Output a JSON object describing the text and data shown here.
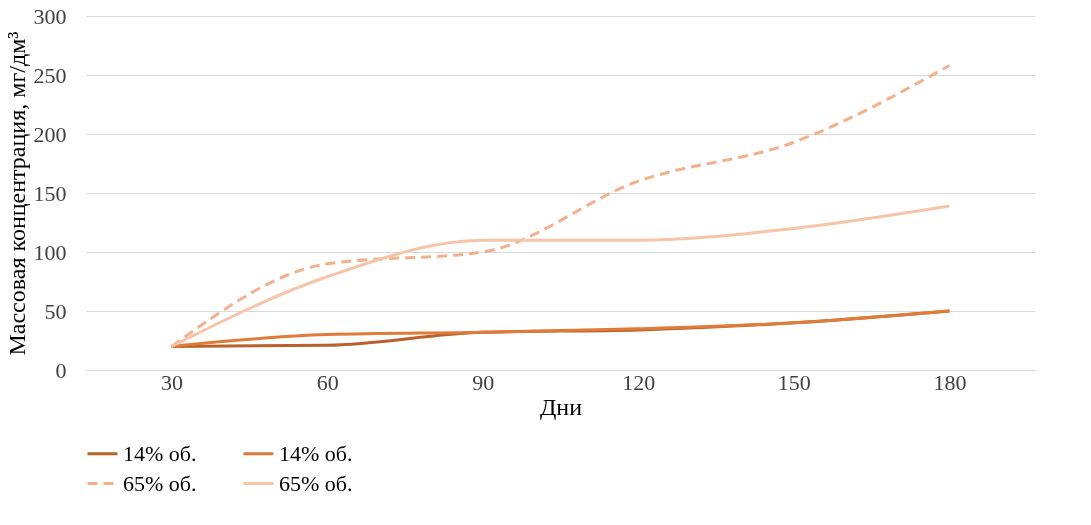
{
  "chart_data": {
    "type": "line",
    "xlabel": "Дни",
    "ylabel": "Массовая концентрация, мг/дм³",
    "categories": [
      "30",
      "60",
      "90",
      "120",
      "150",
      "180"
    ],
    "series": [
      {
        "name": "14% об.",
        "color": "#b8612a",
        "values": [
          20,
          21,
          32,
          34,
          40,
          50
        ]
      },
      {
        "name": "14% об.",
        "color": "#e07b39",
        "values": [
          20,
          30,
          32,
          35,
          40,
          50
        ]
      },
      {
        "name": "65% об.",
        "color": "#f4b08a",
        "values": [
          20,
          90,
          100,
          160,
          193,
          258
        ],
        "line_style": "dashed"
      },
      {
        "name": "65% об.",
        "color": "#f7c4a8",
        "values": [
          20,
          79,
          110,
          110,
          120,
          139
        ]
      }
    ],
    "ylim": [
      0,
      300
    ],
    "yticks": [
      0,
      50,
      100,
      150,
      200,
      250,
      300
    ],
    "grid": "y",
    "legend": "bottom",
    "line_style": "solid",
    "marker": "none"
  }
}
